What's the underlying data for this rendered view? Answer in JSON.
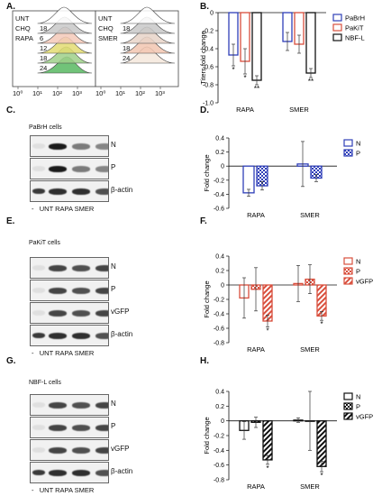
{
  "panels": {
    "A": {
      "label": "A.",
      "left": {
        "rows": [
          "UNT",
          "CHQ",
          "RAPA",
          "",
          "",
          ""
        ],
        "times": [
          "",
          "18",
          "6",
          "12",
          "18",
          "24"
        ]
      },
      "right": {
        "rows": [
          "UNT",
          "CHQ",
          "SMER",
          "",
          ""
        ],
        "times": [
          "",
          "18",
          "",
          "18",
          "24"
        ]
      },
      "xticks": [
        "10⁰",
        "10¹",
        "10²",
        "10³",
        "10⁰",
        "10¹",
        "10²",
        "10³"
      ]
    },
    "B": {
      "label": "B."
    },
    "C": {
      "label": "C.",
      "title": "PaBrH cells",
      "blots": [
        "N",
        "P",
        "β-actin"
      ],
      "lanes": "-   UNT RAPA SMER"
    },
    "D": {
      "label": "D."
    },
    "E": {
      "label": "E.",
      "title": "PaKiT cells",
      "blots": [
        "N",
        "P",
        "vGFP",
        "β-actin"
      ],
      "lanes": "-   UNT RAPA SMER"
    },
    "F": {
      "label": "F."
    },
    "G": {
      "label": "G.",
      "title": "NBF-L cells",
      "blots": [
        "N",
        "P",
        "vGFP",
        "β-actin"
      ],
      "lanes": "-   UNT RAPA SMER"
    },
    "H": {
      "label": "H."
    }
  },
  "chart_data": [
    {
      "id": "B",
      "type": "bar",
      "categories": [
        "RAPA",
        "SMER"
      ],
      "ylabel": "Titers fold change",
      "ylim": [
        -1.0,
        0.0
      ],
      "yticks": [
        "0",
        "-0.2",
        "-0.4",
        "-0.6",
        "-0.8",
        "-1.0"
      ],
      "series": [
        {
          "name": "PaBrH",
          "color": "#2f3fb8",
          "values": [
            -0.47,
            -0.32
          ],
          "err": [
            0.12,
            0.1
          ],
          "sig": [
            "*",
            ""
          ]
        },
        {
          "name": "PaKiT",
          "color": "#d94f3d",
          "values": [
            -0.54,
            -0.35
          ],
          "err": [
            0.14,
            0.1
          ],
          "sig": [
            "*",
            ""
          ]
        },
        {
          "name": "NBF-L",
          "color": "#111111",
          "values": [
            -0.75,
            -0.67
          ],
          "err": [
            0.05,
            0.05
          ],
          "sig": [
            "**",
            "**"
          ]
        }
      ],
      "legend": "top-right"
    },
    {
      "id": "D",
      "type": "bar",
      "categories": [
        "RAPA",
        "SMER"
      ],
      "ylabel": "Fold change",
      "ylim": [
        -0.6,
        0.4
      ],
      "yticks": [
        "0.4",
        "0.2",
        "0",
        "-0.2",
        "-0.4",
        "-0.6"
      ],
      "series": [
        {
          "name": "N",
          "color": "#2f3fb8",
          "pattern": "none",
          "values": [
            -0.38,
            0.03
          ],
          "err": [
            0.05,
            0.32
          ]
        },
        {
          "name": "P",
          "color": "#2f3fb8",
          "pattern": "checker",
          "values": [
            -0.28,
            -0.17
          ],
          "err": [
            0.06,
            0.05
          ]
        }
      ],
      "legend": "top-right"
    },
    {
      "id": "F",
      "type": "bar",
      "categories": [
        "RAPA",
        "SMER"
      ],
      "ylabel": "Fold change",
      "ylim": [
        -0.8,
        0.4
      ],
      "yticks": [
        "0.4",
        "0.2",
        "0",
        "-0.2",
        "-0.4",
        "-0.6",
        "-0.8"
      ],
      "series": [
        {
          "name": "N",
          "color": "#d94f3d",
          "pattern": "none",
          "values": [
            -0.18,
            0.02
          ],
          "err": [
            0.28,
            0.25
          ]
        },
        {
          "name": "P",
          "color": "#d94f3d",
          "pattern": "checker",
          "values": [
            -0.06,
            0.08
          ],
          "err": [
            0.3,
            0.2
          ]
        },
        {
          "name": "vGFP",
          "color": "#d94f3d",
          "pattern": "hatch",
          "values": [
            -0.5,
            -0.43
          ],
          "err": [
            0.08,
            0.06
          ],
          "sig": [
            "*",
            "*"
          ]
        }
      ],
      "legend": "top-right"
    },
    {
      "id": "H",
      "type": "bar",
      "categories": [
        "RAPA",
        "SMER"
      ],
      "ylabel": "Fold change",
      "ylim": [
        -0.8,
        0.4
      ],
      "yticks": [
        "0.4",
        "0.2",
        "0",
        "-0.2",
        "-0.4",
        "-0.6",
        "-0.8"
      ],
      "series": [
        {
          "name": "N",
          "color": "#111111",
          "pattern": "none",
          "values": [
            -0.13,
            0.01
          ],
          "err": [
            0.12,
            0.03
          ]
        },
        {
          "name": "P",
          "color": "#111111",
          "pattern": "checker",
          "values": [
            -0.02,
            0.0
          ],
          "err": [
            0.07,
            0.4
          ]
        },
        {
          "name": "vGFP",
          "color": "#111111",
          "pattern": "hatch",
          "values": [
            -0.53,
            -0.62
          ],
          "err": [
            0.06,
            0.07
          ],
          "sig": [
            "*",
            "*"
          ]
        }
      ],
      "legend": "top-right"
    }
  ]
}
